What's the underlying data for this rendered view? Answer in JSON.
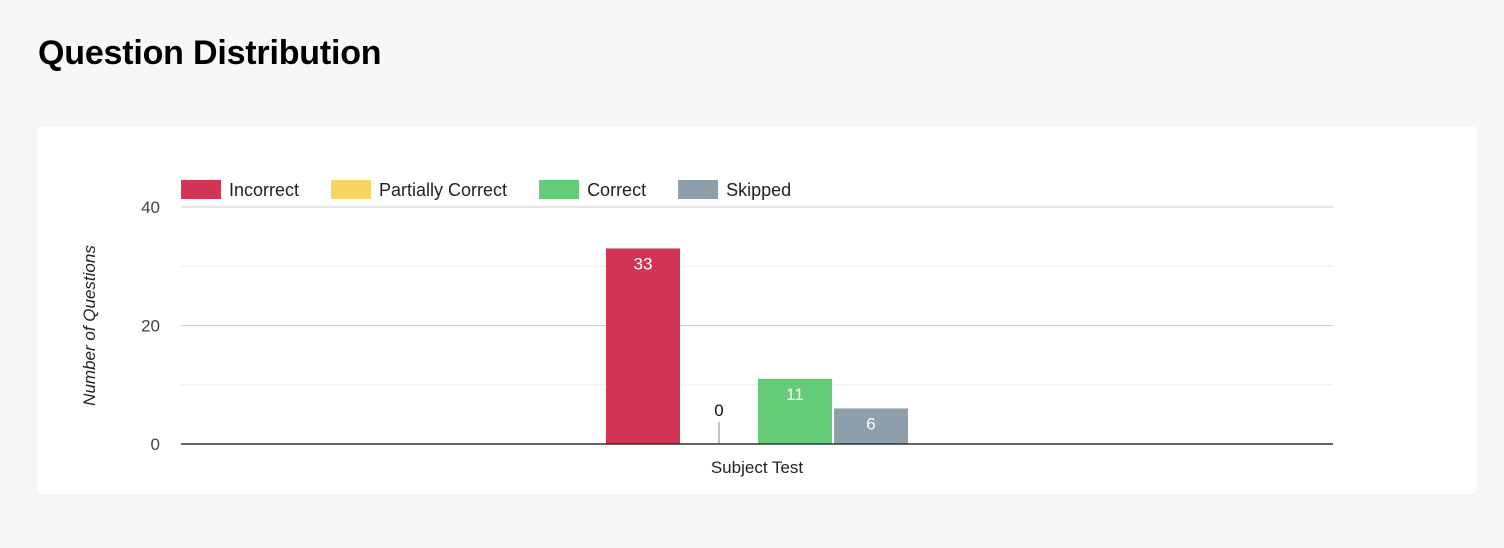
{
  "page": {
    "title": "Question Distribution"
  },
  "chart_data": {
    "type": "bar",
    "title": "",
    "xlabel": "",
    "ylabel": "Number of Questions",
    "ylim": [
      0,
      40
    ],
    "yticks": [
      0,
      20,
      40
    ],
    "minor_gridlines": [
      10,
      30
    ],
    "categories": [
      "Subject Test"
    ],
    "legend_position": "top-left",
    "grid": true,
    "series": [
      {
        "name": "Incorrect",
        "values": [
          33
        ],
        "color": "#d23553"
      },
      {
        "name": "Partially Correct",
        "values": [
          0
        ],
        "color": "#f7d460"
      },
      {
        "name": "Correct",
        "values": [
          11
        ],
        "color": "#64cc78"
      },
      {
        "name": "Skipped",
        "values": [
          6
        ],
        "color": "#8c9faa"
      }
    ]
  }
}
